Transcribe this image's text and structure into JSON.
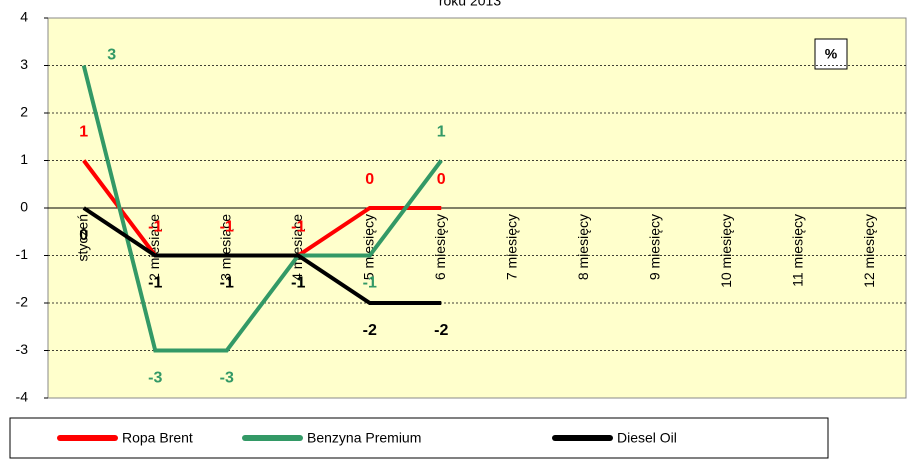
{
  "chart_data": {
    "type": "line",
    "title": "roku 2013",
    "annotation": "%",
    "categories": [
      "styczeń",
      "2 miesiące",
      "3 miesiące",
      "4 miesiące",
      "5 miesięcy",
      "6 miesięcy",
      "7 miesięcy",
      "8 miesięcy",
      "9 miesięcy",
      "10 miesięcy",
      "11 miesięcy",
      "12 miesięcy"
    ],
    "series": [
      {
        "name": "Ropa Brent",
        "color": "#ff0000",
        "values": [
          1,
          -1,
          -1,
          -1,
          0,
          0,
          null,
          null,
          null,
          null,
          null,
          null
        ]
      },
      {
        "name": "Benzyna Premium",
        "color": "#339966",
        "values": [
          3,
          -3,
          -3,
          -1,
          -1,
          1,
          null,
          null,
          null,
          null,
          null,
          null
        ]
      },
      {
        "name": "Diesel Oil",
        "color": "#000000",
        "values": [
          0,
          -1,
          -1,
          -1,
          -2,
          -2,
          null,
          null,
          null,
          null,
          null,
          null
        ]
      }
    ],
    "ylim": [
      -4,
      4
    ],
    "yticks": [
      -4,
      -3,
      -2,
      -1,
      0,
      1,
      2,
      3,
      4
    ],
    "grid": true,
    "legend": "bottom"
  }
}
